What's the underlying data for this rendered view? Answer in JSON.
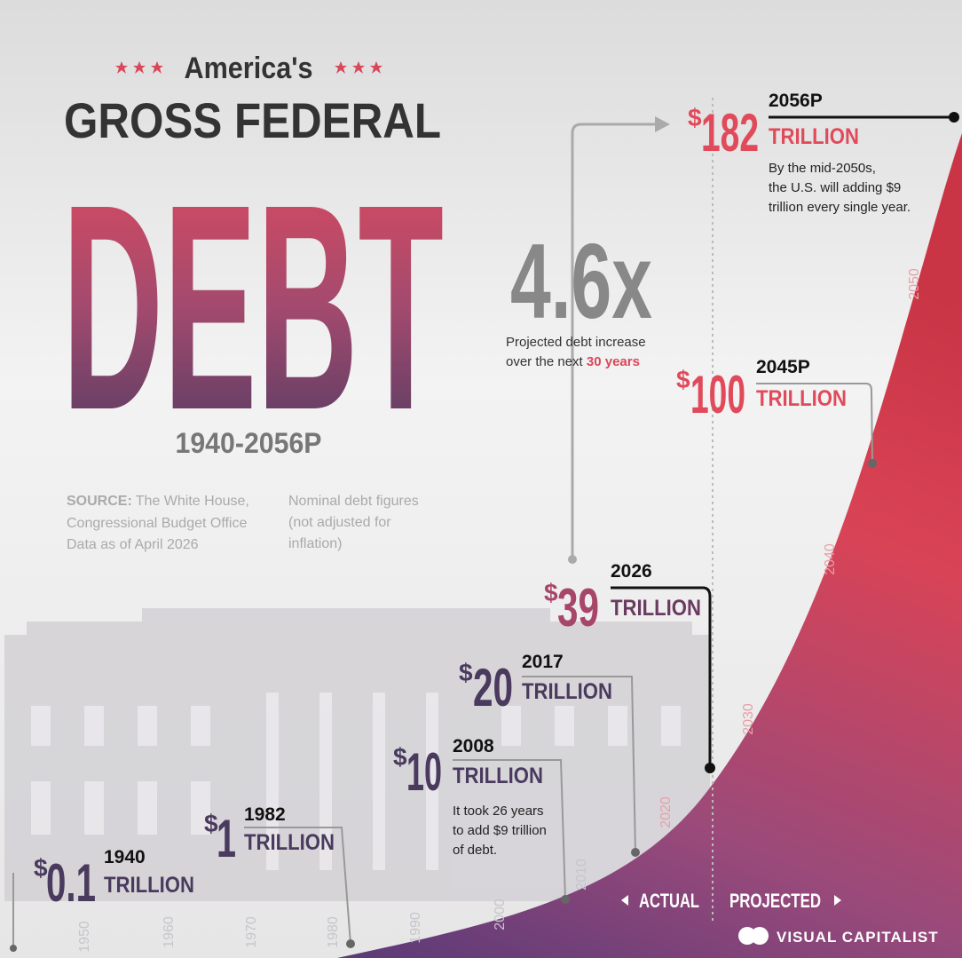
{
  "header": {
    "subtitle": "America's",
    "title": "GROSS FEDERAL",
    "headline": "DEBT",
    "period": "1940-2056P"
  },
  "source": {
    "label": "SOURCE:",
    "lines": [
      "The White House,",
      "Congressional Budget Office",
      "Data as of April 2026"
    ]
  },
  "note": {
    "lines": [
      "Nominal debt figures",
      "(not adjusted for",
      "inflation)"
    ]
  },
  "milestones": [
    {
      "currency": "$",
      "amount": "0.1",
      "year": "1940",
      "unit": "TRILLION"
    },
    {
      "currency": "$",
      "amount": "1",
      "year": "1982",
      "unit": "TRILLION"
    },
    {
      "currency": "$",
      "amount": "10",
      "year": "2008",
      "unit": "TRILLION",
      "note": [
        "It took 26 years",
        "to add $9 trillion",
        "of debt."
      ]
    },
    {
      "currency": "$",
      "amount": "20",
      "year": "2017",
      "unit": "TRILLION"
    },
    {
      "currency": "$",
      "amount": "39",
      "year": "2026",
      "unit": "TRILLION"
    },
    {
      "currency": "$",
      "amount": "100",
      "year": "2045P",
      "unit": "TRILLION"
    },
    {
      "currency": "$",
      "amount": "182",
      "year": "2056P",
      "unit": "TRILLION",
      "note": [
        "By the mid-2050s,",
        "the U.S. will adding $9",
        "trillion every single year."
      ]
    }
  ],
  "multiplier": {
    "value": "4.6x",
    "caption": [
      "Projected debt increase",
      "over the next "
    ],
    "highlight": "30 years"
  },
  "timeline": {
    "years": [
      "1950",
      "1960",
      "1970",
      "1980",
      "1990",
      "2000",
      "2010",
      "2020",
      "2030",
      "2040",
      "2050"
    ],
    "actual": "ACTUAL",
    "projected": "PROJECTED"
  },
  "brand": "VISUAL CAPITALIST"
}
